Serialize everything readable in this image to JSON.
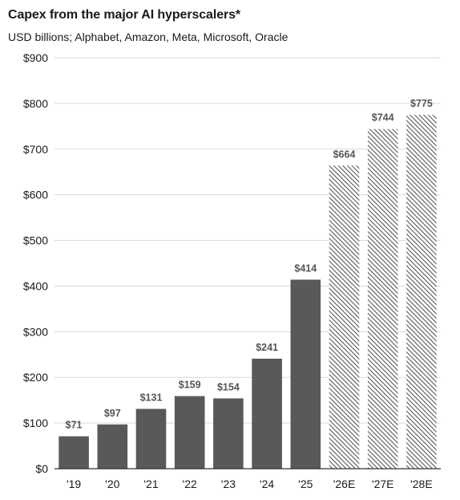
{
  "title": "Capex from the major AI hyperscalers*",
  "subtitle": "USD billions; Alphabet, Amazon, Meta, Microsoft, Oracle",
  "colors": {
    "actual_bar": "#58595b",
    "estimate_hatch": "#58595b",
    "grid": "#d9d9d9",
    "axis": "#333333",
    "data_label": "#555555"
  },
  "chart_data": {
    "type": "bar",
    "title": "Capex from the major AI hyperscalers*",
    "subtitle": "USD billions; Alphabet, Amazon, Meta, Microsoft, Oracle",
    "xlabel": "",
    "ylabel": "",
    "categories": [
      "'19",
      "'20",
      "'21",
      "'22",
      "'23",
      "'24",
      "'25",
      "'26E",
      "'27E",
      "'28E"
    ],
    "values": [
      71,
      97,
      131,
      159,
      154,
      241,
      414,
      664,
      744,
      775
    ],
    "data_labels": [
      "$71",
      "$97",
      "$131",
      "$159",
      "$154",
      "$241",
      "$414",
      "$664",
      "$744",
      "$775"
    ],
    "estimate": [
      false,
      false,
      false,
      false,
      false,
      false,
      false,
      true,
      true,
      true
    ],
    "ylim": [
      0,
      900
    ],
    "yticks": [
      0,
      100,
      200,
      300,
      400,
      500,
      600,
      700,
      800,
      900
    ],
    "ytick_labels": [
      "$0",
      "$100",
      "$200",
      "$300",
      "$400",
      "$500",
      "$600",
      "$700",
      "$800",
      "$900"
    ],
    "grid": true,
    "legend": "none"
  }
}
